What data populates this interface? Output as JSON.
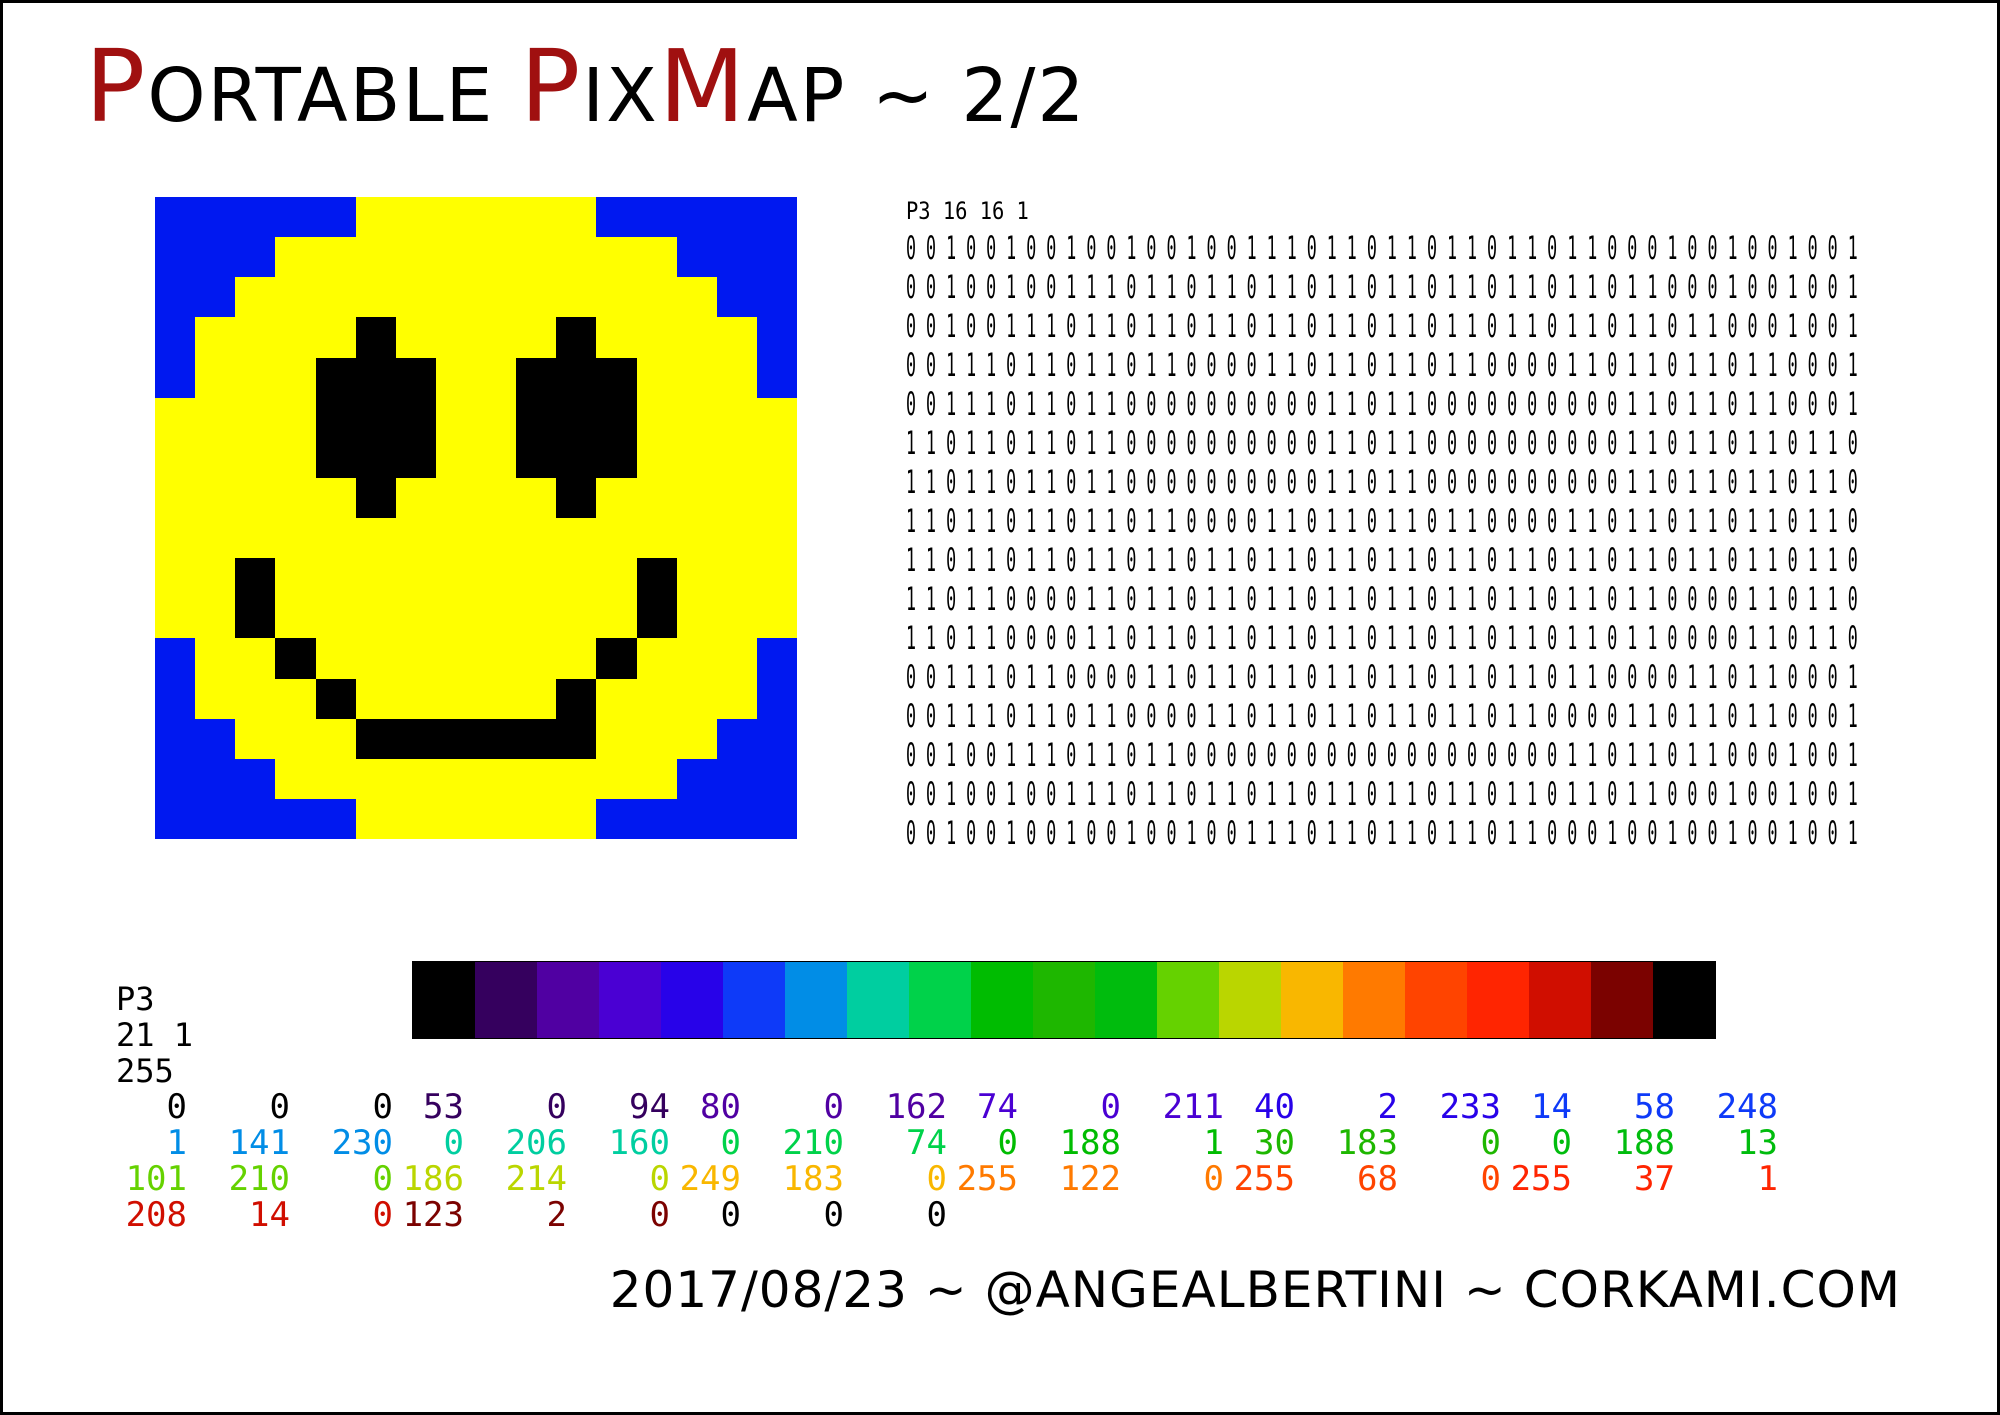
{
  "title": {
    "text": "PORTABLE PIXMAP ~ 2/2",
    "segments": [
      {
        "text": "P",
        "color": "#a01010",
        "size": "big"
      },
      {
        "text": "ORTABLE ",
        "color": "#000000",
        "size": "small"
      },
      {
        "text": "P",
        "color": "#a01010",
        "size": "big"
      },
      {
        "text": "IX",
        "color": "#000000",
        "size": "small"
      },
      {
        "text": "M",
        "color": "#a01010",
        "size": "big"
      },
      {
        "text": "AP ~ 2/2",
        "color": "#000000",
        "size": "small"
      }
    ]
  },
  "image_colors": {
    "0": "#0018f0",
    "1": "#000000",
    "2": "#ffff00"
  },
  "image_rows": [
    "0000022222200000",
    "0002222222222000",
    "0022222222222200",
    "0222222222222220",
    "0222222222222220",
    "2222222222222222",
    "2222222222222222",
    "2222222222222222",
    "2222222222222222",
    "2222222222222222",
    "2222222222222222",
    "0222222222222220",
    "0222222222222220",
    "0022222222222200",
    "0002222222222000",
    "0000022222200000"
  ],
  "image_rows_overlay": [
    "................",
    "................",
    "................",
    ".....1....1.....",
    "....111..111....",
    "....111..111....",
    "....111..111....",
    ".....1....1.....",
    "................",
    "..1.........1...",
    "..1.........1...",
    "...1.......1....",
    "....1.....1.....",
    ".....111111.....",
    "................",
    "................"
  ],
  "bits": {
    "header": "P3 16 16 1",
    "rows": [
      "0 0 1 0 0 1 0 0 1 0 0 1 0 0 1 0 0 1 1 1 0 1 1 0 1 1 0 1 1 0 1 1 0 1 1 0 0 0 1 0 0 1 0 0 1 0 0 1",
      "0 0 1 0 0 1 0 0 1 1 1 0 1 1 0 1 1 0 1 1 0 1 1 0 1 1 0 1 1 0 1 1 0 1 1 0 1 1 0 0 0 1 0 0 1 0 0 1",
      "0 0 1 0 0 1 1 1 0 1 1 0 1 1 0 1 1 0 1 1 0 1 1 0 1 1 0 1 1 0 1 1 0 1 1 0 1 1 0 1 1 0 0 0 1 0 0 1",
      "0 0 1 1 1 0 1 1 0 1 1 0 1 1 0 0 0 0 1 1 0 1 1 0 1 1 0 1 1 0 0 0 0 1 1 0 1 1 0 1 1 0 1 1 0 0 0 1",
      "0 0 1 1 1 0 1 1 0 1 1 0 0 0 0 0 0 0 0 0 0 1 1 0 1 1 0 0 0 0 0 0 0 0 0 0 1 1 0 1 1 0 1 1 0 0 0 1",
      "1 1 0 1 1 0 1 1 0 1 1 0 0 0 0 0 0 0 0 0 0 1 1 0 1 1 0 0 0 0 0 0 0 0 0 0 1 1 0 1 1 0 1 1 0 1 1 0",
      "1 1 0 1 1 0 1 1 0 1 1 0 0 0 0 0 0 0 0 0 0 1 1 0 1 1 0 0 0 0 0 0 0 0 0 0 1 1 0 1 1 0 1 1 0 1 1 0",
      "1 1 0 1 1 0 1 1 0 1 1 0 1 1 0 0 0 0 1 1 0 1 1 0 1 1 0 1 1 0 0 0 0 1 1 0 1 1 0 1 1 0 1 1 0 1 1 0",
      "1 1 0 1 1 0 1 1 0 1 1 0 1 1 0 1 1 0 1 1 0 1 1 0 1 1 0 1 1 0 1 1 0 1 1 0 1 1 0 1 1 0 1 1 0 1 1 0",
      "1 1 0 1 1 0 0 0 0 1 1 0 1 1 0 1 1 0 1 1 0 1 1 0 1 1 0 1 1 0 1 1 0 1 1 0 1 1 0 0 0 0 1 1 0 1 1 0",
      "1 1 0 1 1 0 0 0 0 1 1 0 1 1 0 1 1 0 1 1 0 1 1 0 1 1 0 1 1 0 1 1 0 1 1 0 1 1 0 0 0 0 1 1 0 1 1 0",
      "0 0 1 1 1 0 1 1 0 0 0 0 1 1 0 1 1 0 1 1 0 1 1 0 1 1 0 1 1 0 1 1 0 1 1 0 0 0 0 1 1 0 1 1 0 0 0 1",
      "0 0 1 1 1 0 1 1 0 1 1 0 0 0 0 1 1 0 1 1 0 1 1 0 1 1 0 1 1 0 1 1 0 0 0 0 1 1 0 1 1 0 1 1 0 0 0 1",
      "0 0 1 0 0 1 1 1 0 1 1 0 1 1 0 0 0 0 0 0 0 0 0 0 0 0 0 0 0 0 0 0 0 1 1 0 1 1 0 1 1 0 0 0 1 0 0 1",
      "0 0 1 0 0 1 0 0 1 1 1 0 1 1 0 1 1 0 1 1 0 1 1 0 1 1 0 1 1 0 1 1 0 1 1 0 1 1 0 0 0 1 0 0 1 0 0 1",
      "0 0 1 0 0 1 0 0 1 0 0 1 0 0 1 0 0 1 1 1 0 1 1 0 1 1 0 1 1 0 1 1 0 0 0 1 0 0 1 0 0 1 0 0 1 0 0 1"
    ]
  },
  "palette": [
    "#000000",
    "#35005e",
    "#5000a2",
    "#4a00d3",
    "#2802e9",
    "#0e3af8",
    "#018de6",
    "#00cea0",
    "#00d24a",
    "#00bc01",
    "#1eb700",
    "#00bc0d",
    "#65d200",
    "#bad600",
    "#f9b700",
    "#ff7a00",
    "#ff4400",
    "#ff2501",
    "#d00e00",
    "#7b0200",
    "#000000"
  ],
  "ppm_header": {
    "line1": "P3",
    "line2": "21 1",
    "line3": "255"
  },
  "rgb_rows": [
    {
      "values": [
        "0",
        "0",
        "0",
        "53",
        "0",
        "94",
        "80",
        "0",
        "162",
        "74",
        "0",
        "211",
        "40",
        "2",
        "233",
        "14",
        "58",
        "248"
      ],
      "colors": [
        "#000000",
        "#35005e",
        "#5000a2",
        "#4a00d3",
        "#2802e9",
        "#0e3af8"
      ]
    },
    {
      "values": [
        "1",
        "141",
        "230",
        "0",
        "206",
        "160",
        "0",
        "210",
        "74",
        "0",
        "188",
        "1",
        "30",
        "183",
        "0",
        "0",
        "188",
        "13"
      ],
      "colors": [
        "#018de6",
        "#00cea0",
        "#00d24a",
        "#00bc01",
        "#1eb700",
        "#00bc0d"
      ]
    },
    {
      "values": [
        "101",
        "210",
        "0",
        "186",
        "214",
        "0",
        "249",
        "183",
        "0",
        "255",
        "122",
        "0",
        "255",
        "68",
        "0",
        "255",
        "37",
        "1"
      ],
      "colors": [
        "#65d200",
        "#bad600",
        "#f9b700",
        "#ff7a00",
        "#ff4400",
        "#ff2501"
      ]
    },
    {
      "values": [
        "208",
        "14",
        "0",
        "123",
        "2",
        "0",
        "0",
        "0",
        "0"
      ],
      "colors": [
        "#d00e00",
        "#7b0200",
        "#000000"
      ]
    }
  ],
  "footer": {
    "text": "2017/08/23 ~ @ANGEALBERTINI ~ CORKAMI.COM"
  }
}
